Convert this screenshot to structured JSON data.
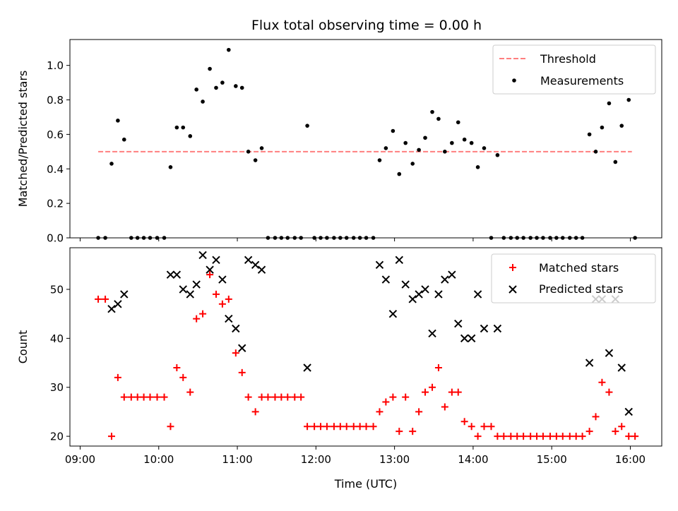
{
  "title": "Flux total observing time = 0.00 h",
  "chart_data": [
    {
      "type": "scatter",
      "ylabel": "Matched/Predicted stars",
      "xlabel": "",
      "xlim": [
        8.87,
        16.4
      ],
      "ylim": [
        0,
        1.15
      ],
      "x_tick_values": [
        9,
        10,
        11,
        12,
        13,
        14,
        15,
        16
      ],
      "y_ticks": [
        "0.0",
        "0.2",
        "0.4",
        "0.6",
        "0.8",
        "1.0"
      ],
      "y_tick_values": [
        0,
        0.2,
        0.4,
        0.6,
        0.8,
        1.0
      ],
      "legend_position": "top-right",
      "threshold": {
        "name": "Threshold",
        "color": "#ff7f7f",
        "x": [
          9.23,
          16.02
        ],
        "y": 0.5
      },
      "series": [
        {
          "name": "Measurements",
          "color": "#000000",
          "points": [
            [
              9.23,
              0
            ],
            [
              9.32,
              0
            ],
            [
              9.4,
              0.43
            ],
            [
              9.48,
              0.68
            ],
            [
              9.56,
              0.57
            ],
            [
              9.65,
              0
            ],
            [
              9.73,
              0
            ],
            [
              9.81,
              0
            ],
            [
              9.89,
              0
            ],
            [
              9.98,
              0
            ],
            [
              10.07,
              0
            ],
            [
              10.15,
              0.41
            ],
            [
              10.23,
              0.64
            ],
            [
              10.31,
              0.64
            ],
            [
              10.4,
              0.59
            ],
            [
              10.48,
              0.86
            ],
            [
              10.56,
              0.79
            ],
            [
              10.65,
              0.98
            ],
            [
              10.73,
              0.87
            ],
            [
              10.81,
              0.9
            ],
            [
              10.89,
              1.09
            ],
            [
              10.98,
              0.88
            ],
            [
              11.06,
              0.87
            ],
            [
              11.14,
              0.5
            ],
            [
              11.23,
              0.45
            ],
            [
              11.31,
              0.52
            ],
            [
              11.39,
              0
            ],
            [
              11.48,
              0
            ],
            [
              11.56,
              0
            ],
            [
              11.64,
              0
            ],
            [
              11.73,
              0
            ],
            [
              11.81,
              0
            ],
            [
              11.89,
              0.65
            ],
            [
              11.98,
              0
            ],
            [
              12.06,
              0
            ],
            [
              12.14,
              0
            ],
            [
              12.23,
              0
            ],
            [
              12.31,
              0
            ],
            [
              12.39,
              0
            ],
            [
              12.48,
              0
            ],
            [
              12.56,
              0
            ],
            [
              12.64,
              0
            ],
            [
              12.73,
              0
            ],
            [
              12.81,
              0.45
            ],
            [
              12.89,
              0.52
            ],
            [
              12.98,
              0.62
            ],
            [
              13.06,
              0.37
            ],
            [
              13.14,
              0.55
            ],
            [
              13.23,
              0.43
            ],
            [
              13.31,
              0.51
            ],
            [
              13.39,
              0.58
            ],
            [
              13.48,
              0.73
            ],
            [
              13.56,
              0.69
            ],
            [
              13.64,
              0.5
            ],
            [
              13.73,
              0.55
            ],
            [
              13.81,
              0.67
            ],
            [
              13.89,
              0.57
            ],
            [
              13.98,
              0.55
            ],
            [
              14.06,
              0.41
            ],
            [
              14.14,
              0.52
            ],
            [
              14.23,
              0
            ],
            [
              14.31,
              0.48
            ],
            [
              14.39,
              0
            ],
            [
              14.48,
              0
            ],
            [
              14.56,
              0
            ],
            [
              14.64,
              0
            ],
            [
              14.73,
              0
            ],
            [
              14.81,
              0
            ],
            [
              14.89,
              0
            ],
            [
              14.98,
              0
            ],
            [
              15.06,
              0
            ],
            [
              15.14,
              0
            ],
            [
              15.23,
              0
            ],
            [
              15.31,
              0
            ],
            [
              15.39,
              0
            ],
            [
              15.48,
              0.6
            ],
            [
              15.56,
              0.5
            ],
            [
              15.64,
              0.64
            ],
            [
              15.73,
              0.78
            ],
            [
              15.81,
              0.44
            ],
            [
              15.89,
              0.65
            ],
            [
              15.98,
              0.8
            ],
            [
              16.06,
              0
            ]
          ]
        }
      ]
    },
    {
      "type": "scatter",
      "ylabel": "Count",
      "xlabel": "Time (UTC)",
      "xlim": [
        8.87,
        16.4
      ],
      "ylim": [
        18,
        58.5
      ],
      "x_ticks": [
        "09:00",
        "10:00",
        "11:00",
        "12:00",
        "13:00",
        "14:00",
        "15:00",
        "16:00"
      ],
      "x_tick_values": [
        9,
        10,
        11,
        12,
        13,
        14,
        15,
        16
      ],
      "y_ticks": [
        "20",
        "30",
        "40",
        "50"
      ],
      "y_tick_values": [
        20,
        30,
        40,
        50
      ],
      "legend_position": "top-right",
      "series": [
        {
          "name": "Matched stars",
          "marker": "plus",
          "color": "#ff0000",
          "points": [
            [
              9.23,
              48
            ],
            [
              9.32,
              48
            ],
            [
              9.4,
              20
            ],
            [
              9.48,
              32
            ],
            [
              9.56,
              28
            ],
            [
              9.65,
              28
            ],
            [
              9.73,
              28
            ],
            [
              9.81,
              28
            ],
            [
              9.89,
              28
            ],
            [
              9.98,
              28
            ],
            [
              10.07,
              28
            ],
            [
              10.15,
              22
            ],
            [
              10.23,
              34
            ],
            [
              10.31,
              32
            ],
            [
              10.4,
              29
            ],
            [
              10.48,
              44
            ],
            [
              10.56,
              45
            ],
            [
              10.65,
              53
            ],
            [
              10.73,
              49
            ],
            [
              10.81,
              47
            ],
            [
              10.89,
              48
            ],
            [
              10.98,
              37
            ],
            [
              11.06,
              33
            ],
            [
              11.14,
              28
            ],
            [
              11.23,
              25
            ],
            [
              11.31,
              28
            ],
            [
              11.39,
              28
            ],
            [
              11.48,
              28
            ],
            [
              11.56,
              28
            ],
            [
              11.64,
              28
            ],
            [
              11.73,
              28
            ],
            [
              11.81,
              28
            ],
            [
              11.89,
              22
            ],
            [
              11.98,
              22
            ],
            [
              12.06,
              22
            ],
            [
              12.14,
              22
            ],
            [
              12.23,
              22
            ],
            [
              12.31,
              22
            ],
            [
              12.39,
              22
            ],
            [
              12.48,
              22
            ],
            [
              12.56,
              22
            ],
            [
              12.64,
              22
            ],
            [
              12.73,
              22
            ],
            [
              12.81,
              25
            ],
            [
              12.89,
              27
            ],
            [
              12.98,
              28
            ],
            [
              13.06,
              21
            ],
            [
              13.14,
              28
            ],
            [
              13.23,
              21
            ],
            [
              13.31,
              25
            ],
            [
              13.39,
              29
            ],
            [
              13.48,
              30
            ],
            [
              13.56,
              34
            ],
            [
              13.64,
              26
            ],
            [
              13.73,
              29
            ],
            [
              13.81,
              29
            ],
            [
              13.89,
              23
            ],
            [
              13.98,
              22
            ],
            [
              14.06,
              20
            ],
            [
              14.14,
              22
            ],
            [
              14.23,
              22
            ],
            [
              14.31,
              20
            ],
            [
              14.39,
              20
            ],
            [
              14.48,
              20
            ],
            [
              14.56,
              20
            ],
            [
              14.64,
              20
            ],
            [
              14.73,
              20
            ],
            [
              14.81,
              20
            ],
            [
              14.89,
              20
            ],
            [
              14.98,
              20
            ],
            [
              15.06,
              20
            ],
            [
              15.14,
              20
            ],
            [
              15.23,
              20
            ],
            [
              15.31,
              20
            ],
            [
              15.39,
              20
            ],
            [
              15.48,
              21
            ],
            [
              15.56,
              24
            ],
            [
              15.64,
              31
            ],
            [
              15.73,
              29
            ],
            [
              15.81,
              21
            ],
            [
              15.89,
              22
            ],
            [
              15.98,
              20
            ],
            [
              16.06,
              20
            ]
          ]
        },
        {
          "name": "Predicted stars",
          "marker": "x",
          "color": "#000000",
          "points": [
            [
              9.4,
              46
            ],
            [
              9.48,
              47
            ],
            [
              9.56,
              49
            ],
            [
              10.15,
              53
            ],
            [
              10.23,
              53
            ],
            [
              10.31,
              50
            ],
            [
              10.4,
              49
            ],
            [
              10.48,
              51
            ],
            [
              10.56,
              57
            ],
            [
              10.65,
              54
            ],
            [
              10.73,
              56
            ],
            [
              10.81,
              52
            ],
            [
              10.89,
              44
            ],
            [
              10.98,
              42
            ],
            [
              11.06,
              38
            ],
            [
              11.14,
              56
            ],
            [
              11.23,
              55
            ],
            [
              11.31,
              54
            ],
            [
              11.89,
              34
            ],
            [
              12.81,
              55
            ],
            [
              12.89,
              52
            ],
            [
              12.98,
              45
            ],
            [
              13.06,
              56
            ],
            [
              13.14,
              51
            ],
            [
              13.23,
              48
            ],
            [
              13.31,
              49
            ],
            [
              13.39,
              50
            ],
            [
              13.48,
              41
            ],
            [
              13.56,
              49
            ],
            [
              13.64,
              52
            ],
            [
              13.73,
              53
            ],
            [
              13.81,
              43
            ],
            [
              13.89,
              40
            ],
            [
              13.98,
              40
            ],
            [
              14.06,
              49
            ],
            [
              14.14,
              42
            ],
            [
              14.31,
              42
            ],
            [
              15.48,
              35
            ],
            [
              15.56,
              48
            ],
            [
              15.64,
              48
            ],
            [
              15.73,
              37
            ],
            [
              15.81,
              48
            ],
            [
              15.89,
              34
            ],
            [
              15.98,
              25
            ]
          ]
        }
      ]
    }
  ]
}
